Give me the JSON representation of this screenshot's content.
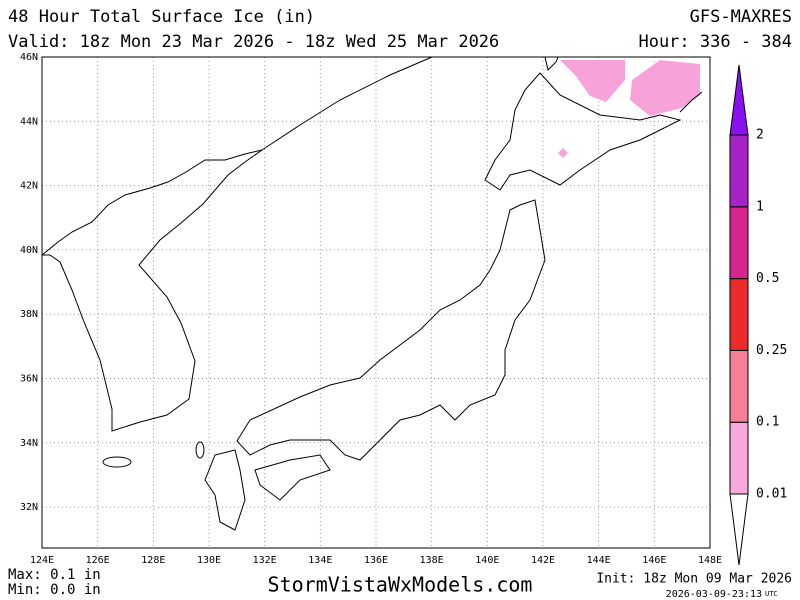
{
  "header": {
    "title": "48 Hour Total Surface Ice (in)",
    "model": "GFS-MAXRES",
    "valid": "Valid: 18z Mon 23 Mar 2026 - 18z Wed 25 Mar 2026",
    "hour": "Hour: 336 - 384"
  },
  "map": {
    "lat_labels": [
      "46N",
      "44N",
      "42N",
      "40N",
      "38N",
      "36N",
      "34N",
      "32N"
    ],
    "lon_labels": [
      "124E",
      "126E",
      "128E",
      "130E",
      "132E",
      "134E",
      "136E",
      "138E",
      "140E",
      "142E",
      "144E",
      "146E",
      "148E"
    ],
    "ice_color": "#f7a3d9"
  },
  "legend": {
    "levels": [
      "0.01",
      "0.1",
      "0.25",
      "0.5",
      "1",
      "2"
    ],
    "colors": [
      "#ffffff",
      "#f9a8dc",
      "#f57f96",
      "#ee2b2b",
      "#d7268f",
      "#a623c8",
      "#8a10f0"
    ]
  },
  "footer": {
    "max": "Max: 0.1 in",
    "min": "Min: 0.0 in",
    "site": "StormVistaWxModels.com",
    "init": "Init: 18z Mon 09 Mar 2026",
    "stamp": "2026-03-09-23:13",
    "utc": "UTC"
  }
}
